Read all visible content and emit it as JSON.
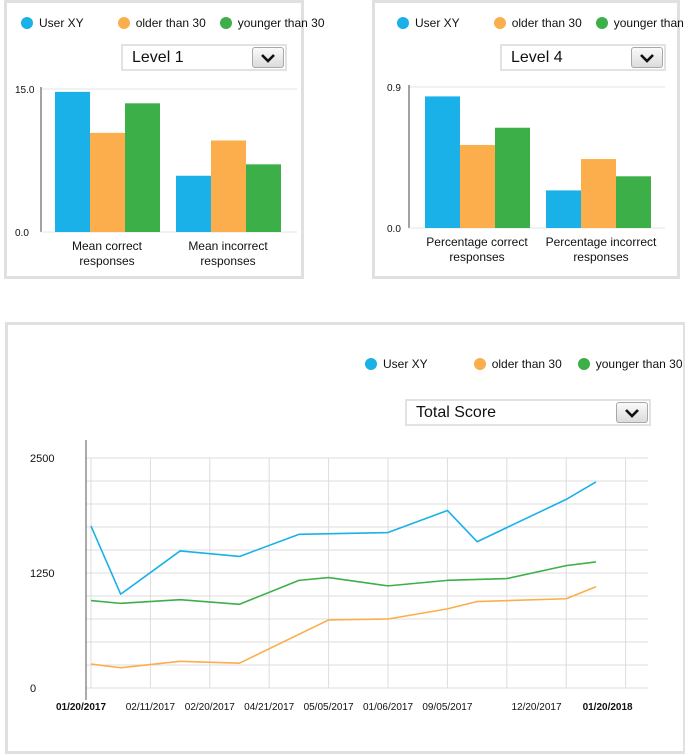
{
  "charts": [
    {
      "dropdown": {
        "selected": "Level 1"
      },
      "chart_data": {
        "type": "bar",
        "categories": [
          [
            "Mean correct",
            "responses"
          ],
          [
            "Mean incorrect",
            "responses"
          ]
        ],
        "series": [
          {
            "name": "User XY",
            "values": [
              14.7,
              5.9
            ]
          },
          {
            "name": "older than 30",
            "values": [
              10.4,
              9.6
            ]
          },
          {
            "name": "younger than 30",
            "values": [
              13.5,
              7.1
            ]
          }
        ],
        "ytick_labels": [
          "15.0",
          "0.0"
        ],
        "ylim": [
          0,
          15
        ]
      }
    },
    {
      "dropdown": {
        "selected": "Level 4"
      },
      "chart_data": {
        "type": "bar",
        "categories": [
          [
            "Percentage correct",
            "responses"
          ],
          [
            "Percentage incorrect",
            "responses"
          ]
        ],
        "series": [
          {
            "name": "User XY",
            "values": [
              0.84,
              0.24
            ]
          },
          {
            "name": "older than 30",
            "values": [
              0.53,
              0.44
            ]
          },
          {
            "name": "younger than 30",
            "values": [
              0.64,
              0.33
            ]
          }
        ],
        "ytick_labels": [
          "0.9",
          "0.0"
        ],
        "ylim": [
          0,
          0.9
        ]
      }
    },
    {
      "dropdown": {
        "selected": "Total Score"
      },
      "chart_data": {
        "type": "line",
        "x_labels": [
          "01/20/2017",
          "02/11/2017",
          "02/20/2017",
          "04/21/2017",
          "05/05/2017",
          "01/06/2017",
          "09/05/2017",
          "12/20/2017",
          "01/20/2018"
        ],
        "x_label_bold": [
          true,
          false,
          false,
          false,
          false,
          false,
          false,
          false,
          true
        ],
        "ytick_labels": [
          "2500",
          "1250",
          "0"
        ],
        "yticks": [
          2500,
          1250,
          0
        ],
        "ylim": [
          0,
          2500
        ],
        "n_points": 19,
        "series": [
          {
            "name": "User XY",
            "values": [
              1760,
              1020,
              null,
              1490,
              null,
              1430,
              null,
              1670,
              null,
              null,
              1690,
              null,
              1930,
              1590,
              null,
              null,
              2050,
              2240,
              null
            ]
          },
          {
            "name": "older than 30",
            "values": [
              260,
              220,
              null,
              290,
              null,
              270,
              null,
              null,
              740,
              null,
              750,
              null,
              860,
              940,
              null,
              null,
              970,
              1100,
              null
            ]
          },
          {
            "name": "younger than 30",
            "values": [
              950,
              920,
              null,
              960,
              null,
              910,
              null,
              1170,
              1200,
              null,
              1110,
              null,
              1170,
              null,
              1190,
              null,
              1330,
              1370,
              null
            ]
          }
        ]
      }
    }
  ],
  "legend": {
    "items": [
      {
        "label": "User XY",
        "color": "#1ab1e8"
      },
      {
        "label": "older than 30",
        "color": "#fbae4b"
      },
      {
        "label": "younger than 30",
        "color": "#3daf48"
      }
    ]
  },
  "colors": {
    "grid": "#dcdcdc",
    "axis": "#555555"
  }
}
